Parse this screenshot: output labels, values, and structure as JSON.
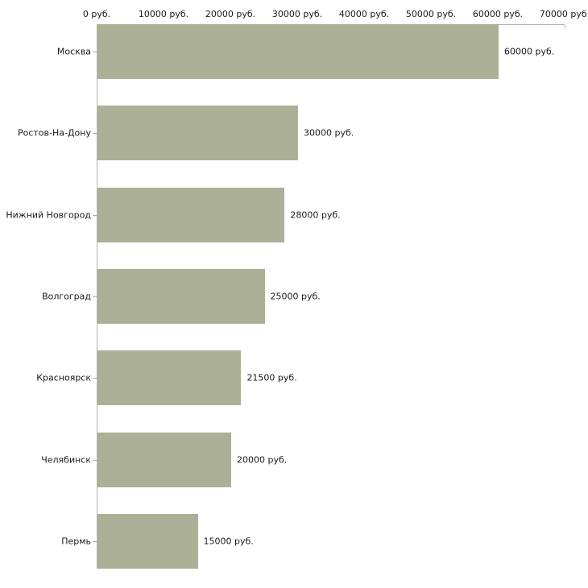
{
  "chart_data": {
    "type": "bar",
    "orientation": "horizontal",
    "title": "",
    "xlabel": "",
    "ylabel": "",
    "grid": false,
    "legend": false,
    "categories": [
      "Москва",
      "Ростов-На-Дону",
      "Нижний Новгород",
      "Волгоград",
      "Красноярск",
      "Челябинск",
      "Пермь"
    ],
    "values": [
      60000,
      30000,
      28000,
      25000,
      21500,
      20000,
      15000
    ],
    "value_labels": [
      "60000 руб.",
      "30000 руб.",
      "28000 руб.",
      "25000 руб.",
      "21500 руб.",
      "20000 руб.",
      "15000 руб."
    ],
    "x_ticks": [
      0,
      10000,
      20000,
      30000,
      40000,
      50000,
      60000,
      70000
    ],
    "x_tick_labels": [
      "0 руб.",
      "10000 руб.",
      "20000 руб.",
      "30000 руб.",
      "40000 руб.",
      "50000 руб.",
      "60000 руб.",
      "70000 руб."
    ],
    "xlim": [
      0,
      70000
    ],
    "colors": {
      "bar": "#acb096",
      "axis_line": "#b3b3b3",
      "tick": "#b5b28c",
      "text": "#1a1a1a",
      "background": "#ffffff"
    }
  }
}
